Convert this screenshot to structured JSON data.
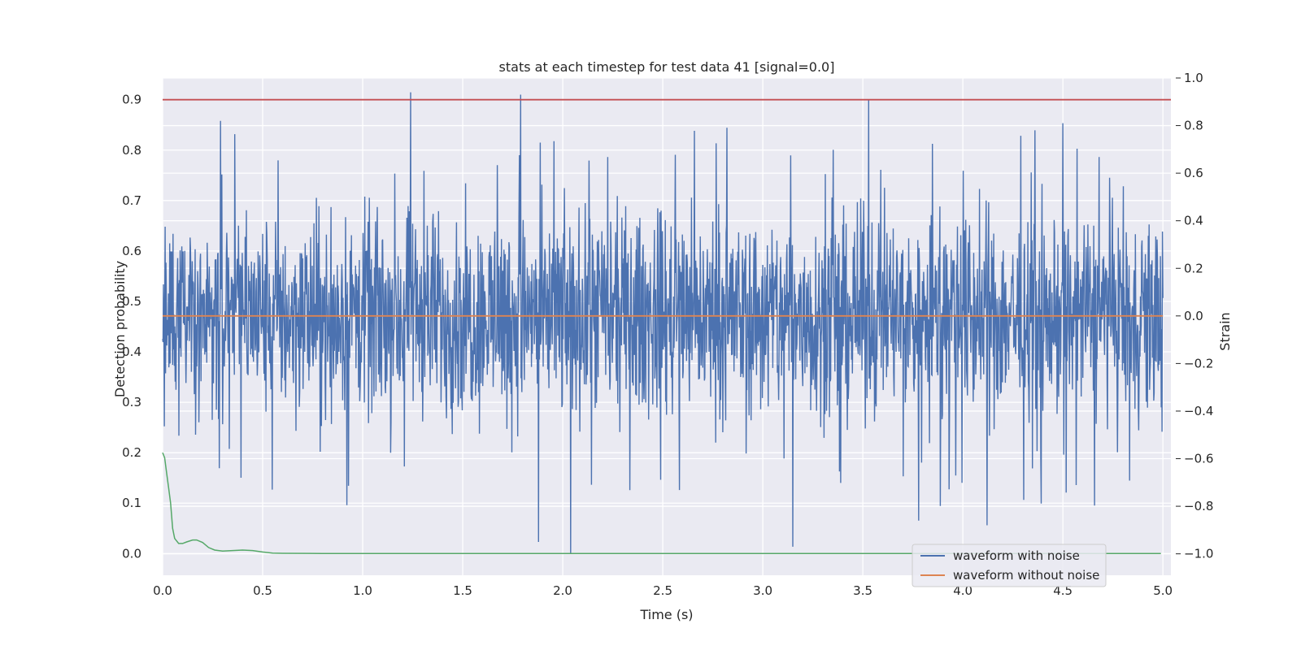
{
  "chart_data": {
    "type": "line",
    "title": "stats at each timestep for test data 41 [signal=0.0]",
    "xlabel": "Time (s)",
    "ylabel_left": "Detection probability",
    "ylabel_right": "Strain",
    "xlim": [
      0.0,
      5.04
    ],
    "ylim_left": [
      -0.043,
      0.943
    ],
    "ylim_right": [
      -1.09,
      1.0
    ],
    "x_ticks": [
      "0.0",
      "0.5",
      "1.0",
      "1.5",
      "2.0",
      "2.5",
      "3.0",
      "3.5",
      "4.0",
      "4.5",
      "5.0"
    ],
    "y_ticks_left": [
      "0.0",
      "0.1",
      "0.2",
      "0.3",
      "0.4",
      "0.5",
      "0.6",
      "0.7",
      "0.8",
      "0.9"
    ],
    "y_ticks_right": [
      "−1.0",
      "−0.8",
      "−0.6",
      "−0.4",
      "−0.2",
      "0.0",
      "0.2",
      "0.4",
      "0.6",
      "0.8",
      "1.0"
    ],
    "grid": true,
    "legend_position": "lower-right",
    "colors": {
      "noise": "#4c72b0",
      "clean": "#dd8452",
      "prob": "#55a868",
      "threshold": "#c44e52",
      "plot_bg": "#eaeaf2",
      "grid": "#ffffff"
    },
    "series": [
      {
        "name": "waveform with noise",
        "axis": "right",
        "x_range": [
          0.0,
          5.0
        ],
        "envelope": {
          "min": -1.0,
          "max": 0.94,
          "typical_high": 0.5,
          "typical_low": -0.5
        },
        "peaks": [
          {
            "x": 1.24,
            "y": 0.94
          },
          {
            "x": 1.79,
            "y": 0.93
          },
          {
            "x": 3.53,
            "y": 0.91
          },
          {
            "x": 0.29,
            "y": 0.82
          },
          {
            "x": 4.5,
            "y": 0.81
          },
          {
            "x": 4.36,
            "y": 0.78
          }
        ],
        "troughs": [
          {
            "x": 2.04,
            "y": -1.0
          },
          {
            "x": 3.15,
            "y": -0.97
          },
          {
            "x": 1.88,
            "y": -0.95
          },
          {
            "x": 4.12,
            "y": -0.88
          },
          {
            "x": 3.78,
            "y": -0.86
          }
        ]
      },
      {
        "name": "waveform without noise",
        "axis": "right",
        "x": [
          0.0,
          5.0
        ],
        "y": [
          0.0,
          0.0
        ]
      },
      {
        "axis": "left",
        "x": [
          0.0,
          0.01,
          0.02,
          0.03,
          0.04,
          0.05,
          0.06,
          0.08,
          0.1,
          0.12,
          0.15,
          0.17,
          0.2,
          0.23,
          0.26,
          0.3,
          0.35,
          0.4,
          0.45,
          0.5,
          0.55,
          0.6,
          0.8,
          1.0,
          2.0,
          3.0,
          4.0,
          4.99
        ],
        "y": [
          0.2,
          0.19,
          0.16,
          0.13,
          0.1,
          0.05,
          0.03,
          0.02,
          0.02,
          0.023,
          0.027,
          0.027,
          0.022,
          0.012,
          0.007,
          0.005,
          0.006,
          0.007,
          0.006,
          0.003,
          0.001,
          0.0005,
          0.0001,
          0.0,
          0.0,
          0.0,
          0.0,
          0.0
        ]
      },
      {
        "axis": "left",
        "x": [
          0.0,
          5.04
        ],
        "y": [
          0.9,
          0.9
        ]
      }
    ]
  }
}
